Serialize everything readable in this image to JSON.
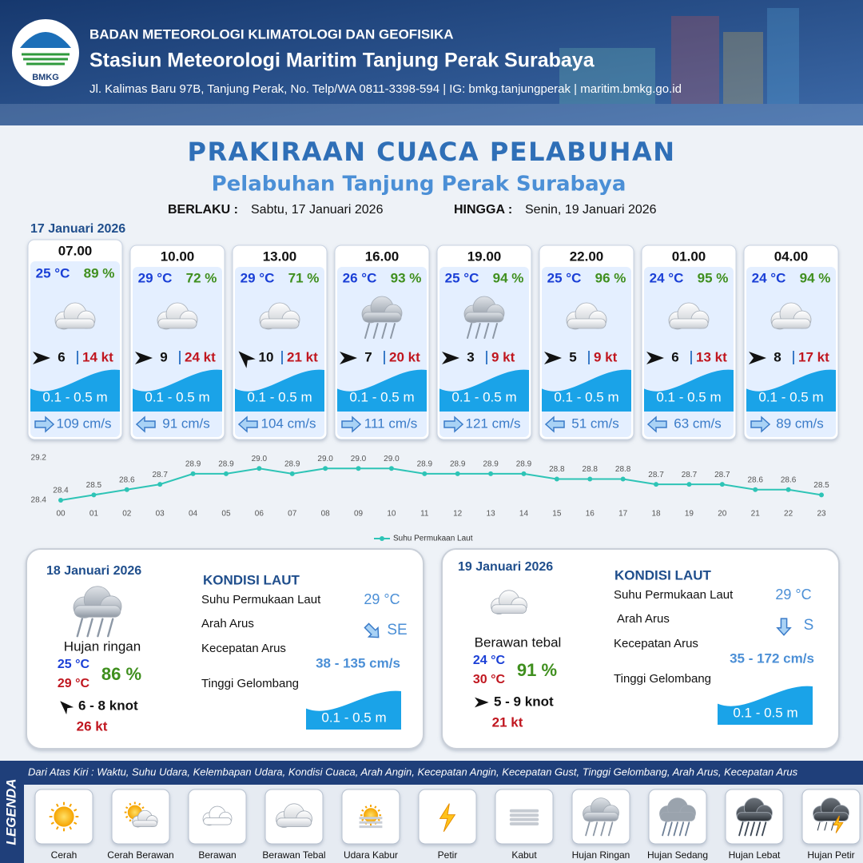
{
  "header": {
    "logo_text": "BMKG",
    "org": "BADAN METEOROLOGI KLIMATOLOGI DAN GEOFISIKA",
    "station": "Stasiun Meteorologi Maritim Tanjung Perak Surabaya",
    "address": "Jl. Kalimas Baru 97B, Tanjung Perak, No. Telp/WA 0811-3398-594 | IG: bmkg.tanjungperak | maritim.bmkg.go.id"
  },
  "title": "PRAKIRAAN CUACA PELABUHAN",
  "subtitle": "Pelabuhan Tanjung Perak Surabaya",
  "validity": {
    "from_label": "BERLAKU :",
    "from": "Sabtu, 17 Januari 2026",
    "to_label": "HINGGA :",
    "to": "Senin, 19 Januari 2026"
  },
  "day1_date": "17 Januari 2026",
  "forecasts": [
    {
      "time": "07.00",
      "temp": "25 °C",
      "humidity": "89 %",
      "condition": "Berawan Tebal",
      "wind_arrow": 0,
      "wind_speed": 6,
      "gust": "14 kt",
      "wave": "0.1 - 0.5 m",
      "current_arrow": 0,
      "current": "109 cm/s"
    },
    {
      "time": "10.00",
      "temp": "29 °C",
      "humidity": "72 %",
      "condition": "Berawan Tebal",
      "wind_arrow": 0,
      "wind_speed": 9,
      "gust": "24 kt",
      "wave": "0.1 - 0.5 m",
      "current_arrow": 180,
      "current": "91 cm/s"
    },
    {
      "time": "13.00",
      "temp": "29 °C",
      "humidity": "71 %",
      "condition": "Berawan Tebal",
      "wind_arrow": -135,
      "wind_speed": 10,
      "gust": "21 kt",
      "wave": "0.1 - 0.5 m",
      "current_arrow": 180,
      "current": "104 cm/s"
    },
    {
      "time": "16.00",
      "temp": "26 °C",
      "humidity": "93 %",
      "condition": "Hujan Ringan",
      "wind_arrow": 0,
      "wind_speed": 7,
      "gust": "20 kt",
      "wave": "0.1 - 0.5 m",
      "current_arrow": 0,
      "current": "111 cm/s"
    },
    {
      "time": "19.00",
      "temp": "25 °C",
      "humidity": "94 %",
      "condition": "Hujan Ringan",
      "wind_arrow": 0,
      "wind_speed": 3,
      "gust": "9 kt",
      "wave": "0.1 - 0.5 m",
      "current_arrow": 0,
      "current": "121 cm/s"
    },
    {
      "time": "22.00",
      "temp": "25 °C",
      "humidity": "96 %",
      "condition": "Berawan Tebal",
      "wind_arrow": 0,
      "wind_speed": 5,
      "gust": "9 kt",
      "wave": "0.1 - 0.5 m",
      "current_arrow": 180,
      "current": "51 cm/s"
    },
    {
      "time": "01.00",
      "temp": "24 °C",
      "humidity": "95 %",
      "condition": "Berawan Tebal",
      "wind_arrow": 0,
      "wind_speed": 6,
      "gust": "13 kt",
      "wave": "0.1 - 0.5 m",
      "current_arrow": 180,
      "current": "63 cm/s"
    },
    {
      "time": "04.00",
      "temp": "24 °C",
      "humidity": "94 %",
      "condition": "Berawan Tebal",
      "wind_arrow": 0,
      "wind_speed": 8,
      "gust": "17 kt",
      "wave": "0.1 - 0.5 m",
      "current_arrow": 0,
      "current": "89 cm/s"
    }
  ],
  "chart_data": {
    "type": "line",
    "categories": [
      "00",
      "01",
      "02",
      "03",
      "04",
      "05",
      "06",
      "07",
      "08",
      "09",
      "10",
      "11",
      "12",
      "13",
      "14",
      "15",
      "16",
      "17",
      "18",
      "19",
      "20",
      "21",
      "22",
      "23"
    ],
    "series": [
      {
        "name": "Suhu Permukaan Laut",
        "color": "#2ec4b6",
        "values": [
          28.4,
          28.5,
          28.6,
          28.7,
          28.9,
          28.9,
          29.0,
          28.9,
          29.0,
          29.0,
          29.0,
          28.9,
          28.9,
          28.9,
          28.9,
          28.8,
          28.8,
          28.8,
          28.7,
          28.7,
          28.7,
          28.6,
          28.6,
          28.5
        ],
        "value_labels": [
          "28.4",
          "28.5",
          "28.6",
          "28.7",
          "28.9",
          "28.9",
          "29.0",
          "28.9",
          "29.0",
          "29.0",
          "29.0",
          "28.9",
          "28.9",
          "28.9",
          "28.9",
          "28.8",
          "28.8",
          "28.8",
          "28.7",
          "28.7",
          "28.7",
          "28.6",
          "28.6",
          "28.5"
        ]
      }
    ],
    "ylim": [
      28.4,
      29.2
    ],
    "yticks": [
      28.4,
      29.2
    ],
    "grid": false,
    "legend": "bottom"
  },
  "days": [
    {
      "date": "18 Januari 2026",
      "condition": "Hujan ringan",
      "temp_min": "25 °C",
      "temp_max": "29 °C",
      "humidity": "86 %",
      "wind_arrow": -135,
      "wind": "6 - 8 knot",
      "gust": "26 kt",
      "sea": {
        "heading": "KONDISI LAUT",
        "sst_label": "Suhu Permukaan Laut",
        "sst": "29 °C",
        "current_dir_label": "Arah Arus",
        "current_arrow": 45,
        "current_dir": "SE",
        "current_speed_label": "Kecepatan Arus",
        "current_speed": "38 - 135 cm/s",
        "wave_label": "Tinggi Gelombang",
        "wave": "0.1 - 0.5 m"
      }
    },
    {
      "date": "19 Januari 2026",
      "condition": "Berawan tebal",
      "temp_min": "24 °C",
      "temp_max": "30 °C",
      "humidity": "91 %",
      "wind_arrow": 0,
      "wind": "5 - 9 knot",
      "gust": "21 kt",
      "sea": {
        "heading": "KONDISI LAUT",
        "sst_label": "Suhu Permukaan Laut",
        "sst": "29 °C",
        "current_dir_label": "Arah Arus",
        "current_arrow": 90,
        "current_dir": "S",
        "current_speed_label": "Kecepatan Arus",
        "current_speed": "35 - 172 cm/s",
        "wave_label": "Tinggi Gelombang",
        "wave": "0.1 - 0.5 m"
      }
    }
  ],
  "legend": {
    "title": "LEGENDA",
    "description": "Dari Atas Kiri : Waktu, Suhu Udara, Kelembapan Udara, Kondisi Cuaca, Arah Angin, Kecepatan Angin, Kecepatan Gust, Tinggi Gelombang, Arah Arus, Kecepatan Arus",
    "items": [
      "Cerah",
      "Cerah Berawan",
      "Berawan",
      "Berawan Tebal",
      "Udara Kabur",
      "Petir",
      "Kabut",
      "Hujan Ringan",
      "Hujan Sedang",
      "Hujan Lebat",
      "Hujan Petir"
    ]
  }
}
